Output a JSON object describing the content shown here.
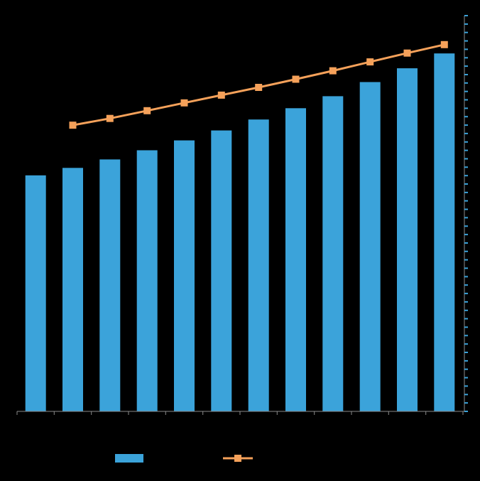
{
  "chart_data": {
    "type": "bar",
    "title": "",
    "xlabel": "",
    "ylabel": "",
    "categories": [
      "",
      "",
      "",
      "",
      "",
      "",
      "",
      "",
      "",
      "",
      "",
      ""
    ],
    "series": [
      {
        "name": "",
        "type": "bar",
        "color": "#3ba3da",
        "values": [
          66.8,
          68.9,
          71.3,
          73.9,
          76.7,
          79.5,
          82.6,
          85.8,
          89.2,
          93.2,
          97.1,
          101.3
        ]
      },
      {
        "name": "",
        "type": "line",
        "color": "#f5a15a",
        "marker": "square",
        "values": [
          null,
          81.0,
          82.9,
          85.1,
          87.3,
          89.5,
          91.7,
          94.0,
          96.4,
          98.9,
          101.4,
          103.8
        ]
      }
    ],
    "ylim": [
      0,
      112
    ],
    "legend_position": "bottom",
    "grid": false,
    "axis_color": "#8a8a8a",
    "right_axis_color": "#3ba3da",
    "background": "#000000"
  }
}
